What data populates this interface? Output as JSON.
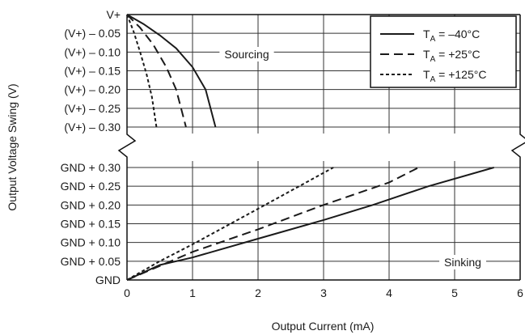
{
  "chart_data": {
    "type": "line",
    "xlabel": "Output Current (mA)",
    "ylabel": "Output Voltage Swing (V)",
    "xlim": [
      0,
      6
    ],
    "x_ticks": [
      "0",
      "1",
      "2",
      "3",
      "4",
      "5",
      "6"
    ],
    "grid": true,
    "legend_position": "top-right",
    "upper_panel": {
      "y_unit": "V below V+",
      "ylim": [
        0,
        0.3
      ],
      "y_ticks": [
        {
          "value": 0.0,
          "label": "V+"
        },
        {
          "value": 0.05,
          "label": "(V+) – 0.05"
        },
        {
          "value": 0.1,
          "label": "(V+) – 0.10"
        },
        {
          "value": 0.15,
          "label": "(V+) – 0.15"
        },
        {
          "value": 0.2,
          "label": "(V+) – 0.20"
        },
        {
          "value": 0.25,
          "label": "(V+) – 0.25"
        },
        {
          "value": 0.3,
          "label": "(V+) – 0.30"
        }
      ],
      "annotation": "Sourcing"
    },
    "lower_panel": {
      "y_unit": "V above GND",
      "ylim": [
        0,
        0.3
      ],
      "y_ticks": [
        {
          "value": 0.0,
          "label": "GND"
        },
        {
          "value": 0.05,
          "label": "GND + 0.05"
        },
        {
          "value": 0.1,
          "label": "GND + 0.10"
        },
        {
          "value": 0.15,
          "label": "GND + 0.15"
        },
        {
          "value": 0.2,
          "label": "GND + 0.20"
        },
        {
          "value": 0.25,
          "label": "GND + 0.25"
        },
        {
          "value": 0.3,
          "label": "GND + 0.30"
        }
      ],
      "annotation": "Sinking"
    },
    "series": [
      {
        "legend_main": "T",
        "legend_sub": "A",
        "legend_rest": " = –40°C",
        "style": "solid",
        "sourcing": {
          "x": [
            0,
            0.25,
            0.5,
            0.75,
            1.0,
            1.2,
            1.35
          ],
          "y": [
            0,
            0.025,
            0.055,
            0.09,
            0.14,
            0.2,
            0.3
          ]
        },
        "sinking": {
          "x": [
            0,
            0.5,
            1.0,
            2.0,
            3.0,
            3.75,
            4.6,
            5.6
          ],
          "y": [
            0,
            0.04,
            0.06,
            0.11,
            0.16,
            0.2,
            0.25,
            0.3
          ]
        }
      },
      {
        "legend_main": "T",
        "legend_sub": "A",
        "legend_rest": " = +25°C",
        "style": "dashed",
        "sourcing": {
          "x": [
            0,
            0.2,
            0.4,
            0.6,
            0.75,
            0.9
          ],
          "y": [
            0,
            0.035,
            0.08,
            0.14,
            0.2,
            0.3
          ]
        },
        "sinking": {
          "x": [
            0,
            1.0,
            2.0,
            3.0,
            4.0,
            4.45
          ],
          "y": [
            0,
            0.075,
            0.135,
            0.2,
            0.26,
            0.3
          ]
        }
      },
      {
        "legend_main": "T",
        "legend_sub": "A",
        "legend_rest": " = +125°C",
        "style": "dotted",
        "sourcing": {
          "x": [
            0,
            0.1,
            0.2,
            0.3,
            0.38,
            0.45
          ],
          "y": [
            0,
            0.045,
            0.1,
            0.16,
            0.22,
            0.3
          ]
        },
        "sinking": {
          "x": [
            0,
            0.5,
            1.0,
            2.0,
            3.15
          ],
          "y": [
            0,
            0.05,
            0.095,
            0.19,
            0.3
          ]
        }
      }
    ]
  }
}
